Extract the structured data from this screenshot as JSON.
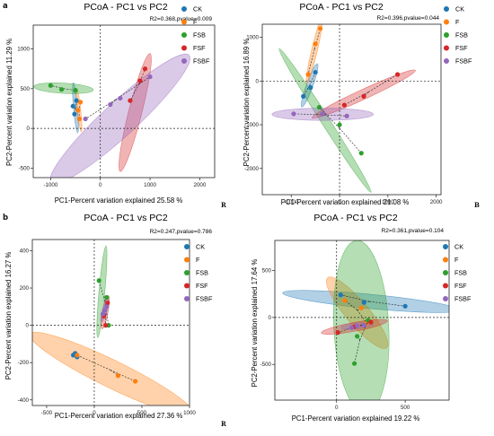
{
  "panel_labels": {
    "a": "a",
    "b": "b"
  },
  "corner_labels": {
    "p1": "R",
    "p2": "B",
    "p4": "R"
  },
  "colors": {
    "CK": "#1f77b4",
    "F": "#ff7f0e",
    "FSB": "#2ca02c",
    "FSF": "#d62728",
    "FSBF": "#9467bd"
  },
  "chart_data": [
    {
      "type": "scatter",
      "title": "PCoA - PC1 vs PC2",
      "stat": "R2=0.368,pvalue=0.009",
      "xlabel": "PC1-Percent variation explained 25.58 %",
      "ylabel": "PC2-Percent variation explained 11.29 %",
      "xlim": [
        -1350,
        2300
      ],
      "ylim": [
        -620,
        1300
      ],
      "xticks": [
        -1000,
        0,
        1000,
        2000
      ],
      "yticks": [
        -500,
        0,
        500,
        1000
      ],
      "legend": [
        "CK",
        "F",
        "FSB",
        "FSF",
        "FSBF"
      ],
      "series": [
        {
          "name": "CK",
          "points": [
            [
              -550,
              280
            ],
            [
              -520,
              180
            ],
            [
              -480,
              350
            ]
          ],
          "centroid": [
            -500,
            250
          ]
        },
        {
          "name": "F",
          "points": [
            [
              -450,
              230
            ],
            [
              -420,
              120
            ],
            [
              -400,
              330
            ]
          ],
          "centroid": [
            -430,
            220
          ]
        },
        {
          "name": "FSB",
          "points": [
            [
              -1000,
              540
            ],
            [
              -780,
              490
            ],
            [
              -500,
              480
            ]
          ],
          "centroid": [
            -740,
            500
          ]
        },
        {
          "name": "FSF",
          "points": [
            [
              600,
              350
            ],
            [
              800,
              600
            ],
            [
              900,
              750
            ]
          ],
          "centroid": [
            780,
            560
          ]
        },
        {
          "name": "FSBF",
          "points": [
            [
              -300,
              120
            ],
            [
              200,
              300
            ],
            [
              400,
              380
            ],
            [
              1000,
              650
            ]
          ],
          "centroid": [
            300,
            360
          ]
        }
      ],
      "ellipses": [
        {
          "group": "CK",
          "center": [
            -500,
            260
          ],
          "semi_axes": [
            320,
            40
          ],
          "angle_deg": -82
        },
        {
          "group": "F",
          "center": [
            -430,
            230
          ],
          "semi_axes": [
            280,
            35
          ],
          "angle_deg": -80
        },
        {
          "group": "FSB",
          "center": [
            -740,
            505
          ],
          "semi_axes": [
            600,
            65
          ],
          "angle_deg": -2
        },
        {
          "group": "FSF",
          "center": [
            700,
            200
          ],
          "semi_axes": [
            800,
            120
          ],
          "angle_deg": 68
        },
        {
          "group": "FSBF",
          "center": [
            400,
            120
          ],
          "semi_axes": [
            1600,
            230
          ],
          "angle_deg": 30
        }
      ]
    },
    {
      "type": "scatter",
      "title": "PCoA - PC1 vs PC2",
      "stat": "R2=0.396,pvalue=0.044",
      "xlabel": "PC1-Percent variation explained 21.08 %",
      "ylabel": "PC2-Percent variation explained 16.89 %",
      "xlim": [
        -1600,
        2100
      ],
      "ylim": [
        -2600,
        1300
      ],
      "xticks": [
        -1000,
        0,
        1000,
        2000
      ],
      "yticks": [
        -2000,
        -1000,
        0,
        1000
      ],
      "legend": [
        "CK",
        "F",
        "FSB",
        "FSF",
        "FSBF"
      ],
      "series": [
        {
          "name": "CK",
          "points": [
            [
              -750,
              -350
            ],
            [
              -600,
              -150
            ],
            [
              -500,
              200
            ]
          ],
          "centroid": [
            -620,
            -100
          ]
        },
        {
          "name": "F",
          "points": [
            [
              -650,
              150
            ],
            [
              -500,
              850
            ],
            [
              -400,
              1200
            ]
          ],
          "centroid": [
            -520,
            730
          ]
        },
        {
          "name": "FSB",
          "points": [
            [
              -420,
              -600
            ],
            [
              0,
              -1000
            ],
            [
              450,
              -1650
            ]
          ],
          "centroid": [
            0,
            -1080
          ]
        },
        {
          "name": "FSF",
          "points": [
            [
              100,
              -550
            ],
            [
              500,
              -350
            ],
            [
              1200,
              150
            ]
          ],
          "centroid": [
            600,
            -250
          ]
        },
        {
          "name": "FSBF",
          "points": [
            [
              -950,
              -750
            ],
            [
              -350,
              -750
            ],
            [
              150,
              -800
            ]
          ],
          "centroid": [
            -380,
            -770
          ]
        }
      ],
      "ellipses": [
        {
          "group": "CK",
          "center": [
            -620,
            -100
          ],
          "semi_axes": [
            520,
            70
          ],
          "angle_deg": 72
        },
        {
          "group": "F",
          "center": [
            -520,
            700
          ],
          "semi_axes": [
            780,
            60
          ],
          "angle_deg": 78
        },
        {
          "group": "FSB",
          "center": [
            -300,
            -900
          ],
          "semi_axes": [
            1900,
            90
          ],
          "angle_deg": -60
        },
        {
          "group": "FSF",
          "center": [
            500,
            -300
          ],
          "semi_axes": [
            1200,
            110
          ],
          "angle_deg": 27
        },
        {
          "group": "FSBF",
          "center": [
            -350,
            -760
          ],
          "semi_axes": [
            1050,
            140
          ],
          "angle_deg": 0
        }
      ]
    },
    {
      "type": "scatter",
      "title": "PCoA - PC1 vs PC2",
      "stat": "R2=0.247,pvalue=0.786",
      "xlabel": "PC1-Percent variation explained 27.36 %",
      "ylabel": "PC2-Percent variation explained 16.27 %",
      "xlim": [
        -650,
        1000
      ],
      "ylim": [
        -430,
        460
      ],
      "xticks": [
        -500,
        0,
        500,
        1000
      ],
      "yticks": [
        -400,
        -200,
        0,
        200,
        400
      ],
      "legend": [
        "CK",
        "F",
        "FSB",
        "FSF",
        "FSBF"
      ],
      "series": [
        {
          "name": "CK",
          "points": [
            [
              -200,
              -150
            ],
            [
              -180,
              -170
            ],
            [
              -220,
              -160
            ]
          ],
          "centroid": [
            -200,
            -160
          ]
        },
        {
          "name": "F",
          "points": [
            [
              -180,
              -160
            ],
            [
              250,
              -270
            ],
            [
              430,
              -300
            ]
          ],
          "centroid": [
            170,
            -240
          ]
        },
        {
          "name": "FSB",
          "points": [
            [
              50,
              240
            ],
            [
              130,
              150
            ],
            [
              150,
              0
            ]
          ],
          "centroid": [
            110,
            130
          ]
        },
        {
          "name": "FSF",
          "points": [
            [
              100,
              50
            ],
            [
              120,
              0
            ],
            [
              140,
              120
            ]
          ],
          "centroid": [
            120,
            55
          ]
        },
        {
          "name": "FSBF",
          "points": [
            [
              90,
              60
            ],
            [
              110,
              80
            ],
            [
              130,
              100
            ]
          ],
          "centroid": [
            110,
            80
          ]
        }
      ],
      "ellipses": [
        {
          "group": "F",
          "center": [
            180,
            -260
          ],
          "semi_axes": [
            880,
            75
          ],
          "angle_deg": -14
        },
        {
          "group": "FSB",
          "center": [
            80,
            180
          ],
          "semi_axes": [
            250,
            30
          ],
          "angle_deg": 80
        },
        {
          "group": "FSF",
          "center": [
            115,
            70
          ],
          "semi_axes": [
            95,
            25
          ],
          "angle_deg": 70
        },
        {
          "group": "FSBF",
          "center": [
            110,
            80
          ],
          "semi_axes": [
            70,
            20
          ],
          "angle_deg": 60
        }
      ]
    },
    {
      "type": "scatter",
      "title": "PCoA - PC1 vs PC2",
      "stat": "R2=0.361,pvalue=0.104",
      "xlabel": "PC1-Percent variation explained 19.22 %",
      "ylabel": "PC2-Percent variation explained 17.64 %",
      "xlim": [
        -450,
        820
      ],
      "ylim": [
        -880,
        820
      ],
      "xticks": [
        0,
        500
      ],
      "yticks": [
        -500,
        0,
        500
      ],
      "legend": [
        "CK",
        "F",
        "FSB",
        "FSF",
        "FSBF"
      ],
      "series": [
        {
          "name": "CK",
          "points": [
            [
              30,
              240
            ],
            [
              200,
              160
            ],
            [
              500,
              120
            ]
          ],
          "centroid": [
            240,
            170
          ]
        },
        {
          "name": "F",
          "points": [
            [
              60,
              180
            ],
            [
              180,
              100
            ],
            [
              220,
              -60
            ]
          ],
          "centroid": [
            150,
            80
          ]
        },
        {
          "name": "FSB",
          "points": [
            [
              150,
              -200
            ],
            [
              230,
              -30
            ],
            [
              130,
              -490
            ]
          ],
          "centroid": [
            170,
            -240
          ]
        },
        {
          "name": "FSF",
          "points": [
            [
              10,
              -160
            ],
            [
              130,
              -100
            ],
            [
              250,
              -50
            ]
          ],
          "centroid": [
            130,
            -100
          ]
        },
        {
          "name": "FSBF",
          "points": [
            [
              110,
              -110
            ],
            [
              150,
              -90
            ],
            [
              200,
              -80
            ]
          ],
          "centroid": [
            150,
            -95
          ]
        }
      ],
      "ellipses": [
        {
          "group": "CK",
          "center": [
            250,
            170
          ],
          "semi_axes": [
            650,
            75
          ],
          "angle_deg": -8
        },
        {
          "group": "F",
          "center": [
            150,
            50
          ],
          "semi_axes": [
            430,
            90
          ],
          "angle_deg": -60
        },
        {
          "group": "FSB",
          "center": [
            180,
            -100
          ],
          "semi_axes": [
            920,
            200
          ],
          "angle_deg": -88
        },
        {
          "group": "FSF",
          "center": [
            130,
            -100
          ],
          "semi_axes": [
            250,
            45
          ],
          "angle_deg": 15
        },
        {
          "group": "FSBF",
          "center": [
            150,
            -90
          ],
          "semi_axes": [
            120,
            30
          ],
          "angle_deg": 10
        }
      ]
    }
  ]
}
